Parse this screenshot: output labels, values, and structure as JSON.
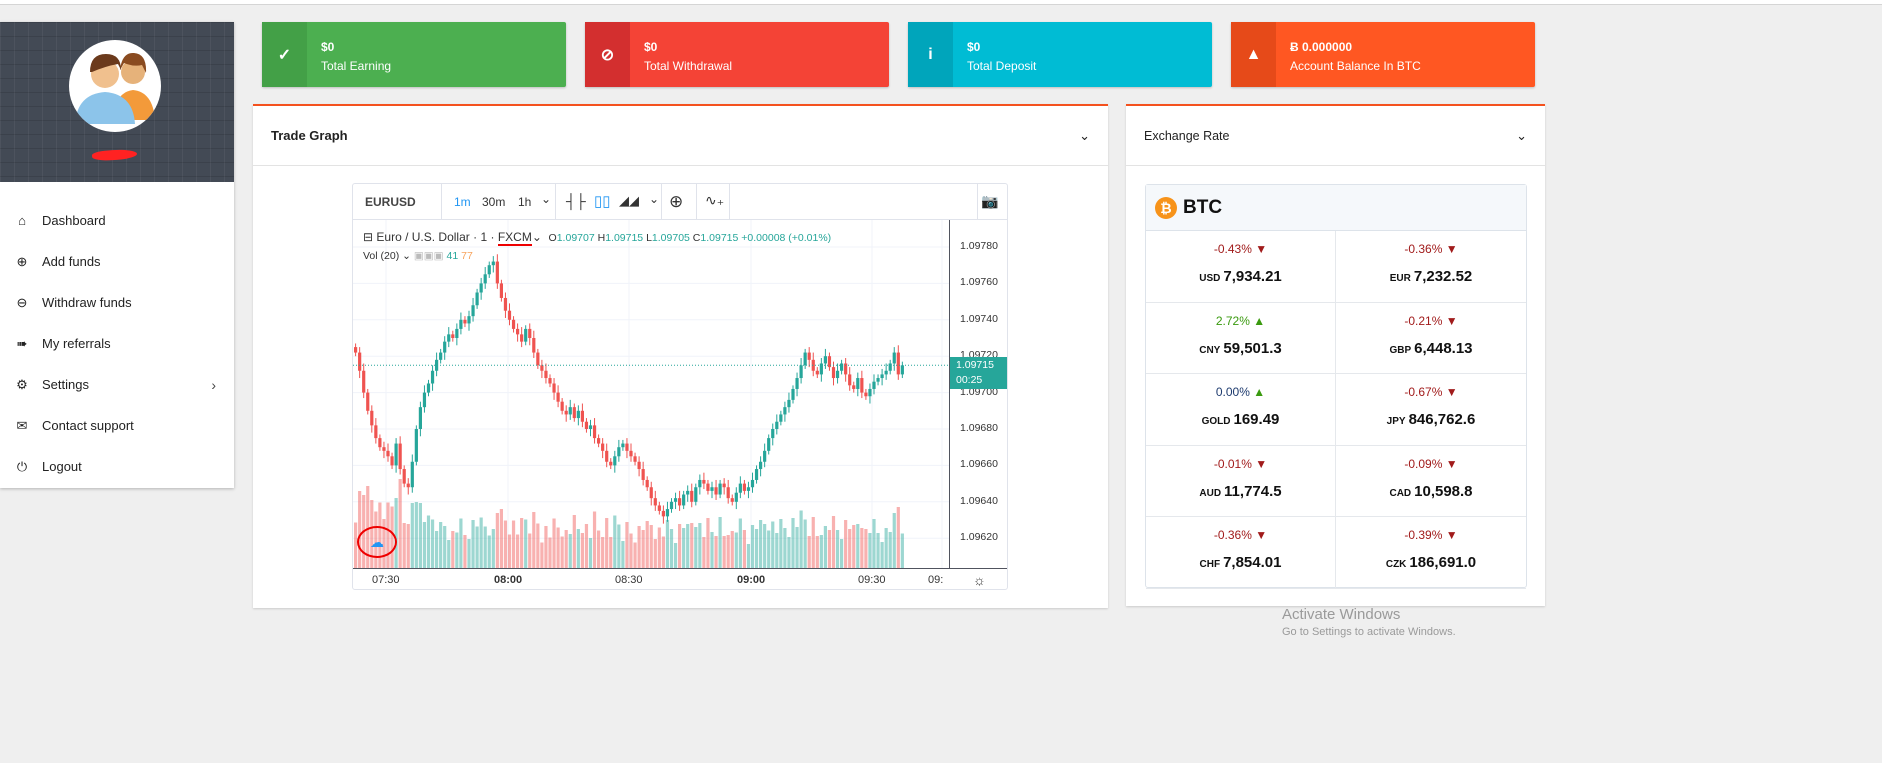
{
  "sidebar": {
    "items": [
      {
        "label": "Dashboard",
        "icon": "home-icon"
      },
      {
        "label": "Add funds",
        "icon": "plus-circle-icon"
      },
      {
        "label": "Withdraw funds",
        "icon": "minus-circle-icon"
      },
      {
        "label": "My referrals",
        "icon": "arrow-right-icon"
      },
      {
        "label": "Settings",
        "icon": "gear-icon"
      },
      {
        "label": "Contact support",
        "icon": "envelope-icon"
      },
      {
        "label": "Logout",
        "icon": "power-icon"
      }
    ]
  },
  "cards": [
    {
      "value": "$0",
      "label": "Total Earning",
      "color": "#4caf50",
      "icon_bg": "#43a047",
      "icon": "check-icon"
    },
    {
      "value": "$0",
      "label": "Total Withdrawal",
      "color": "#f44336",
      "icon_bg": "#d32f2f",
      "icon": "ban-icon"
    },
    {
      "value": "$0",
      "label": "Total Deposit",
      "color": "#00bcd4",
      "icon_bg": "#00a5bb",
      "icon": "info-icon"
    },
    {
      "value": "Ƀ 0.000000",
      "label": "Account Balance In BTC",
      "color": "#ff5722",
      "icon_bg": "#e64a19",
      "icon": "warning-icon"
    }
  ],
  "trade": {
    "title": "Trade Graph",
    "toolbar": {
      "symbol": "EURUSD",
      "intervals": [
        "1m",
        "30m",
        "1h"
      ],
      "active_interval": "1m"
    },
    "legend": {
      "name": "Euro / U.S. Dollar",
      "interval": "1",
      "source": "FXCM",
      "o": "1.09707",
      "h": "1.09715",
      "l": "1.09705",
      "c": "1.09715",
      "change": "+0.00008 (+0.01%)",
      "vol_label": "Vol (20)",
      "vol_a": "41",
      "vol_b": "77"
    },
    "current_price": "1.09715",
    "countdown": "00:25"
  },
  "chart_data": {
    "type": "candlestick",
    "symbol": "EURUSD",
    "interval": "1m",
    "start_time": "07:22",
    "ylim": [
      1.0961,
      1.0979
    ],
    "yticks": [
      "1.09780",
      "1.09760",
      "1.09740",
      "1.09720",
      "1.09700",
      "1.09680",
      "1.09660",
      "1.09640",
      "1.09620"
    ],
    "xticks": [
      "07:30",
      "08:00",
      "08:30",
      "09:00",
      "09:30",
      "09:"
    ],
    "up_color": "#26a69a",
    "down_color": "#ef5350",
    "closes": [
      1.09722,
      1.09712,
      1.097,
      1.0969,
      1.09682,
      1.09675,
      1.0967,
      1.09668,
      1.09665,
      1.0966,
      1.09672,
      1.09658,
      1.0965,
      1.09648,
      1.09662,
      1.0968,
      1.09692,
      1.097,
      1.09705,
      1.09712,
      1.09718,
      1.09722,
      1.09728,
      1.09732,
      1.0973,
      1.09735,
      1.0974,
      1.09738,
      1.09742,
      1.09748,
      1.09755,
      1.0976,
      1.09765,
      1.0977,
      1.09772,
      1.0976,
      1.09752,
      1.09745,
      1.0974,
      1.09735,
      1.09732,
      1.09728,
      1.09735,
      1.0973,
      1.09722,
      1.09715,
      1.09712,
      1.09708,
      1.09705,
      1.097,
      1.09695,
      1.0969,
      1.09688,
      1.09692,
      1.09686,
      1.0969,
      1.09684,
      1.0968,
      1.09682,
      1.09675,
      1.09672,
      1.09668,
      1.09662,
      1.0966,
      1.09665,
      1.0967,
      1.09672,
      1.09668,
      1.09665,
      1.09662,
      1.09658,
      1.09652,
      1.09648,
      1.09642,
      1.09638,
      1.09635,
      1.09632,
      1.09636,
      1.0964,
      1.09642,
      1.09638,
      1.09644,
      1.09646,
      1.0964,
      1.09648,
      1.09652,
      1.0965,
      1.09646,
      1.09648,
      1.09644,
      1.0965,
      1.09648,
      1.09642,
      1.0964,
      1.09645,
      1.0965,
      1.09646,
      1.09648,
      1.09652,
      1.09658,
      1.09662,
      1.09668,
      1.09675,
      1.0968,
      1.09684,
      1.09688,
      1.09692,
      1.09696,
      1.09702,
      1.09708,
      1.09715,
      1.09722,
      1.09718,
      1.09712,
      1.0971,
      1.09716,
      1.0972,
      1.09714,
      1.09708,
      1.09712,
      1.09716,
      1.0971,
      1.09704,
      1.09702,
      1.09708,
      1.097,
      1.09698,
      1.09702,
      1.09706,
      1.09708,
      1.0971,
      1.09712,
      1.09716,
      1.09722,
      1.0971,
      1.09715
    ]
  },
  "exchange": {
    "title": "Exchange Rate",
    "coin": "BTC",
    "rates": [
      {
        "cur": "USD",
        "price": "7,934.21",
        "change": "-0.43%",
        "dir": "down"
      },
      {
        "cur": "EUR",
        "price": "7,232.52",
        "change": "-0.36%",
        "dir": "down"
      },
      {
        "cur": "CNY",
        "price": "59,501.3",
        "change": "2.72%",
        "dir": "up"
      },
      {
        "cur": "GBP",
        "price": "6,448.13",
        "change": "-0.21%",
        "dir": "down"
      },
      {
        "cur": "GOLD",
        "price": "169.49",
        "change": "0.00%",
        "dir": "flat"
      },
      {
        "cur": "JPY",
        "price": "846,762.6",
        "change": "-0.67%",
        "dir": "down"
      },
      {
        "cur": "AUD",
        "price": "11,774.5",
        "change": "-0.01%",
        "dir": "down"
      },
      {
        "cur": "CAD",
        "price": "10,598.8",
        "change": "-0.09%",
        "dir": "down"
      },
      {
        "cur": "CHF",
        "price": "7,854.01",
        "change": "-0.36%",
        "dir": "down"
      },
      {
        "cur": "CZK",
        "price": "186,691.0",
        "change": "-0.39%",
        "dir": "down"
      }
    ]
  },
  "watermark": {
    "line1": "Activate Windows",
    "line2": "Go to Settings to activate Windows."
  }
}
